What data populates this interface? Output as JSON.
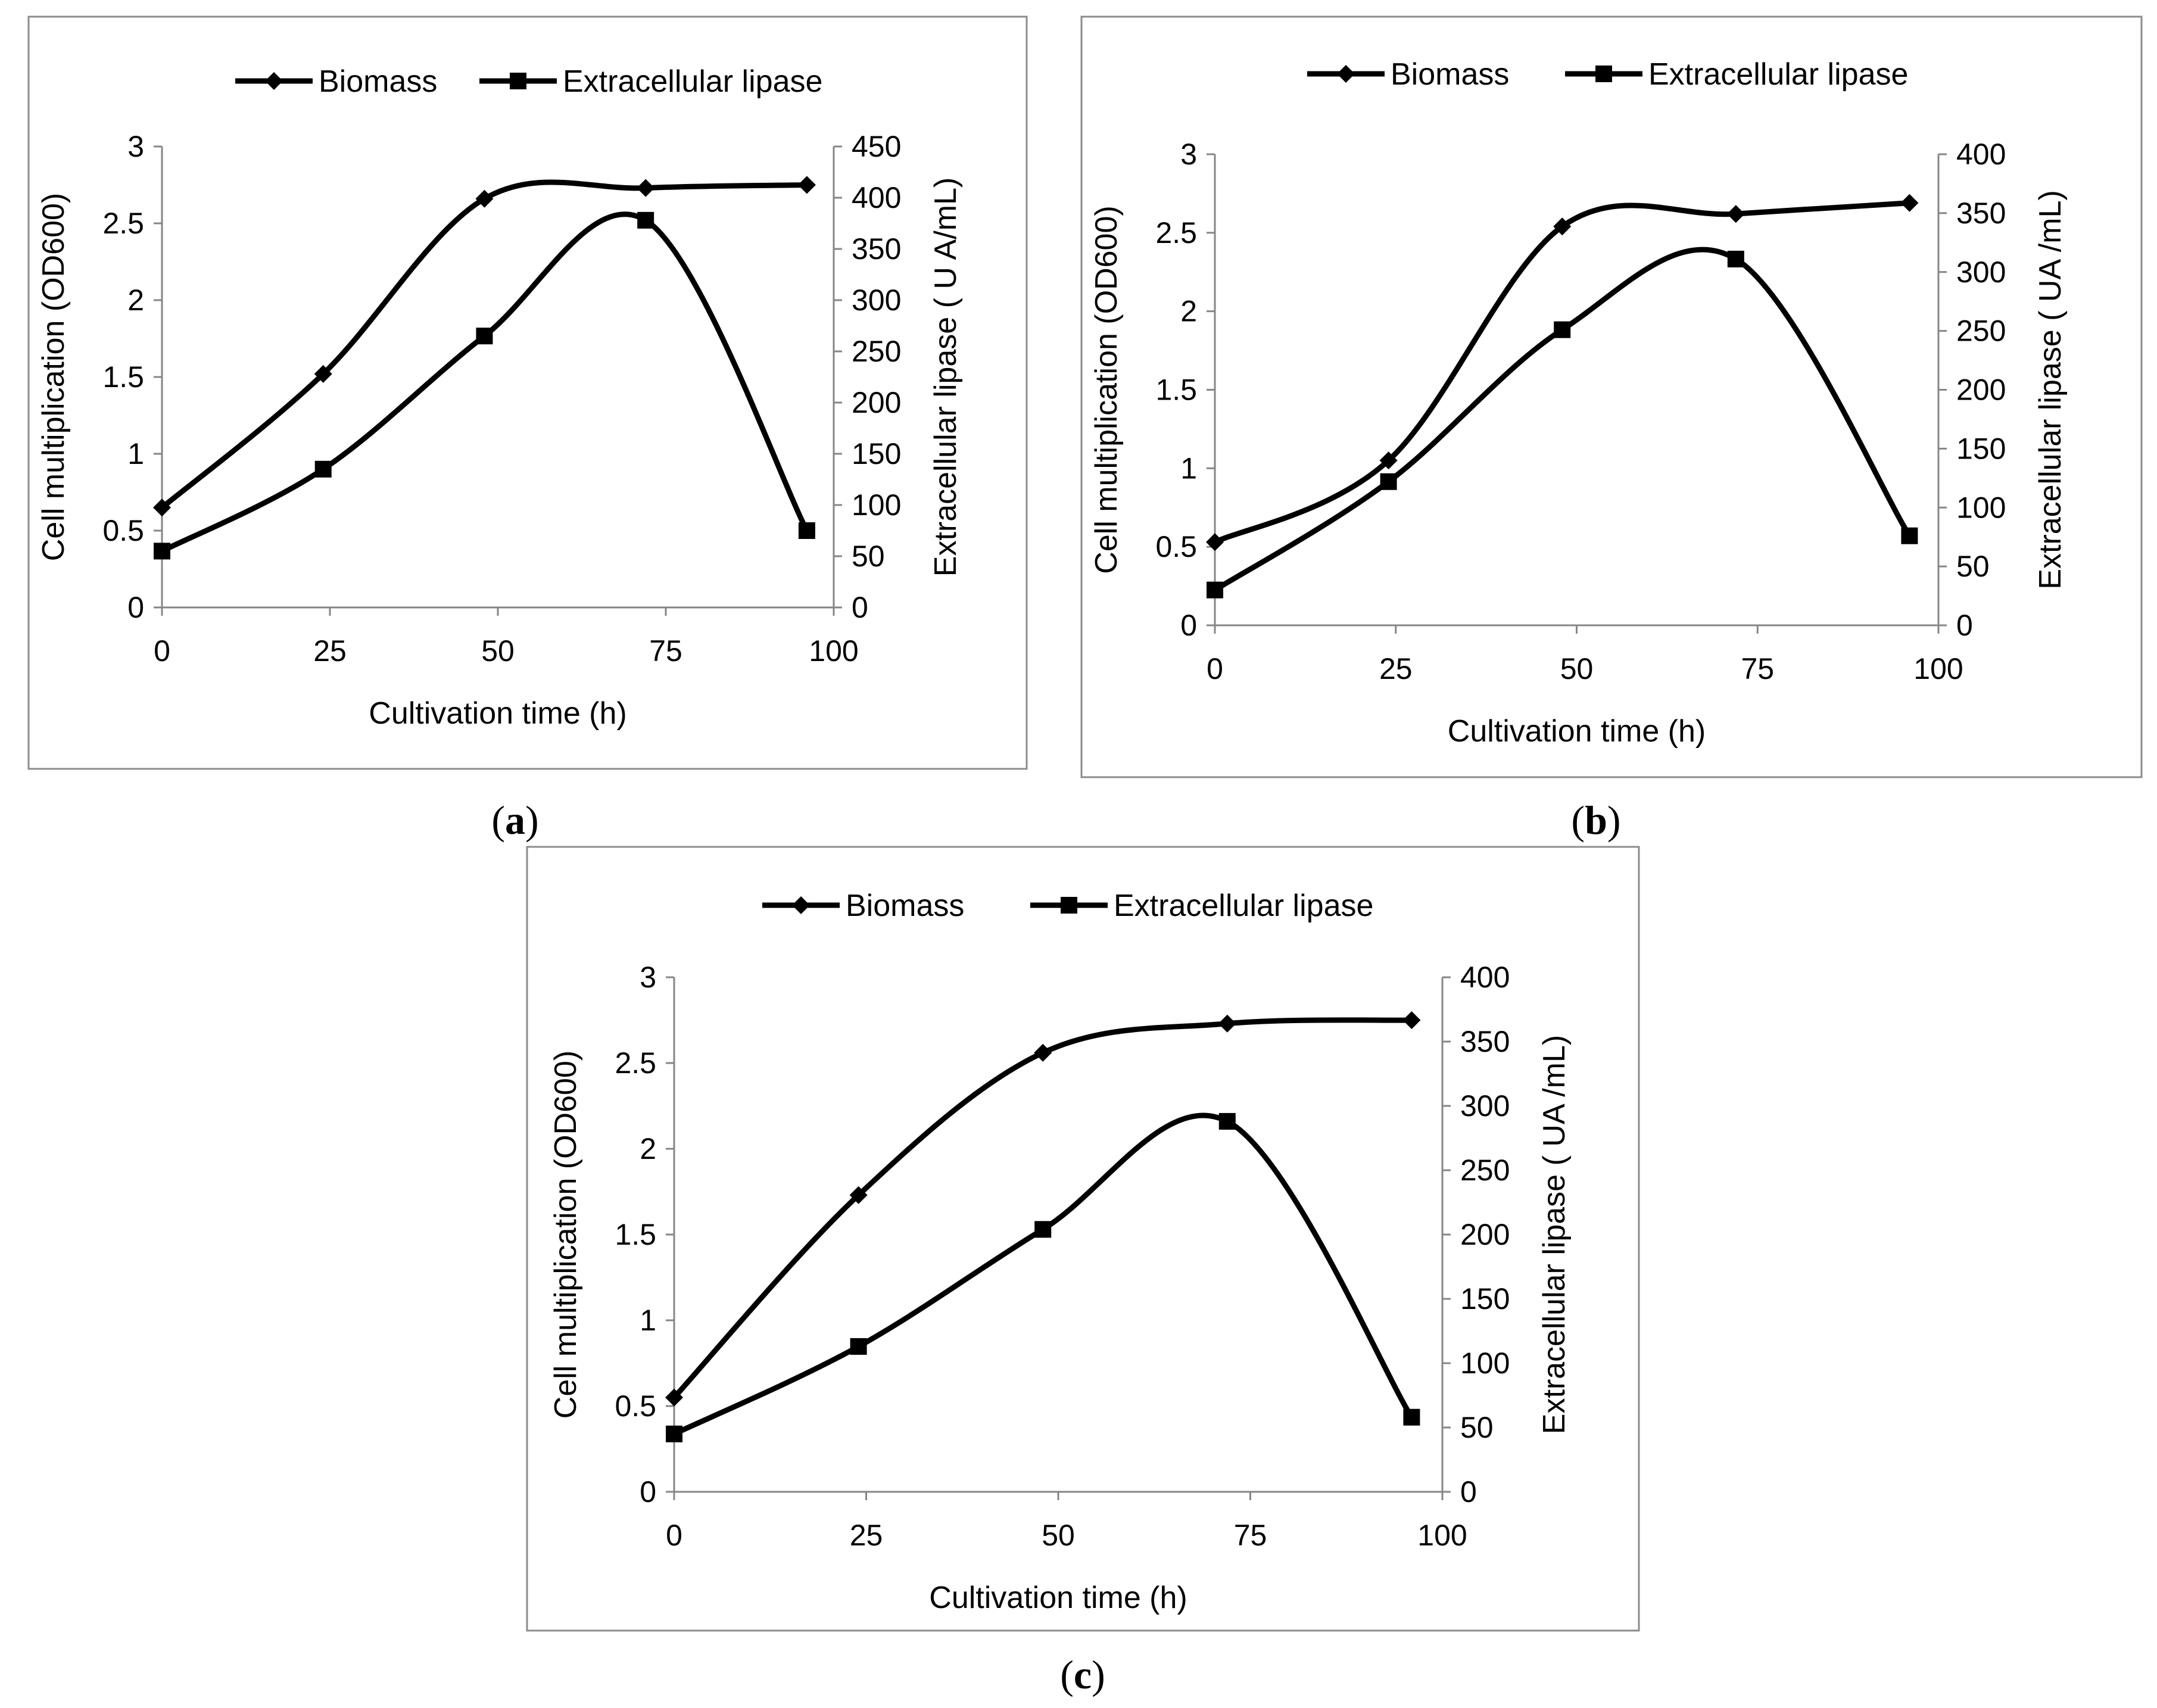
{
  "chart_data": [
    {
      "id": "a",
      "type": "line",
      "caption": "a",
      "legend": [
        "Biomass",
        "Extracellular lipase"
      ],
      "xlabel": "Cultivation time (h)",
      "ylabel": "Cell multiplication (OD600)",
      "y2label": "Extracellular lipase ( U A/mL)",
      "xlim": [
        0,
        100
      ],
      "xticks": [
        0,
        25,
        50,
        75,
        100
      ],
      "ylim": [
        0,
        3
      ],
      "yticks": [
        0,
        0.5,
        1,
        1.5,
        2,
        2.5,
        3
      ],
      "y2lim": [
        0,
        450
      ],
      "y2ticks": [
        0,
        50,
        100,
        150,
        200,
        250,
        300,
        350,
        400,
        450
      ],
      "series": [
        {
          "name": "Biomass",
          "axis": "left",
          "marker": "diamond",
          "x": [
            0,
            24,
            48,
            72,
            96
          ],
          "values": [
            0.65,
            1.52,
            2.66,
            2.73,
            2.75
          ]
        },
        {
          "name": "Extracellular lipase",
          "axis": "right",
          "marker": "square",
          "x": [
            0,
            24,
            48,
            72,
            96
          ],
          "values": [
            55,
            135,
            265,
            378,
            75
          ]
        }
      ]
    },
    {
      "id": "b",
      "type": "line",
      "caption": "b",
      "legend": [
        "Biomass",
        "Extracellular lipase"
      ],
      "xlabel": "Cultivation time (h)",
      "ylabel": "Cell multiplication (OD600)",
      "y2label": "Extracellular lipase ( UA /mL)",
      "xlim": [
        0,
        100
      ],
      "xticks": [
        0,
        25,
        50,
        75,
        100
      ],
      "ylim": [
        0,
        3
      ],
      "yticks": [
        0,
        0.5,
        1,
        1.5,
        2,
        2.5,
        3
      ],
      "y2lim": [
        0,
        400
      ],
      "y2ticks": [
        0,
        50,
        100,
        150,
        200,
        250,
        300,
        350,
        400
      ],
      "series": [
        {
          "name": "Biomass",
          "axis": "left",
          "marker": "diamond",
          "x": [
            0,
            24,
            48,
            72,
            96
          ],
          "values": [
            0.53,
            1.05,
            2.54,
            2.62,
            2.69
          ]
        },
        {
          "name": "Extracellular lipase",
          "axis": "right",
          "marker": "square",
          "x": [
            0,
            24,
            48,
            72,
            96
          ],
          "values": [
            30,
            122,
            251,
            311,
            76
          ]
        }
      ]
    },
    {
      "id": "c",
      "type": "line",
      "caption": "c",
      "legend": [
        "Biomass",
        "Extracellular lipase"
      ],
      "xlabel": "Cultivation time (h)",
      "ylabel": "Cell multiplication (OD600)",
      "y2label": "Extracellular lipase ( UA /mL)",
      "xlim": [
        0,
        100
      ],
      "xticks": [
        0,
        25,
        50,
        75,
        100
      ],
      "ylim": [
        0,
        3
      ],
      "yticks": [
        0,
        0.5,
        1,
        1.5,
        2,
        2.5,
        3
      ],
      "y2lim": [
        0,
        400
      ],
      "y2ticks": [
        0,
        50,
        100,
        150,
        200,
        250,
        300,
        350,
        400
      ],
      "series": [
        {
          "name": "Biomass",
          "axis": "left",
          "marker": "diamond",
          "x": [
            0,
            24,
            48,
            72,
            96
          ],
          "values": [
            0.55,
            1.73,
            2.56,
            2.73,
            2.75
          ]
        },
        {
          "name": "Extracellular lipase",
          "axis": "right",
          "marker": "square",
          "x": [
            0,
            24,
            48,
            72,
            96
          ],
          "values": [
            45,
            113,
            204,
            288,
            58
          ]
        }
      ]
    }
  ]
}
